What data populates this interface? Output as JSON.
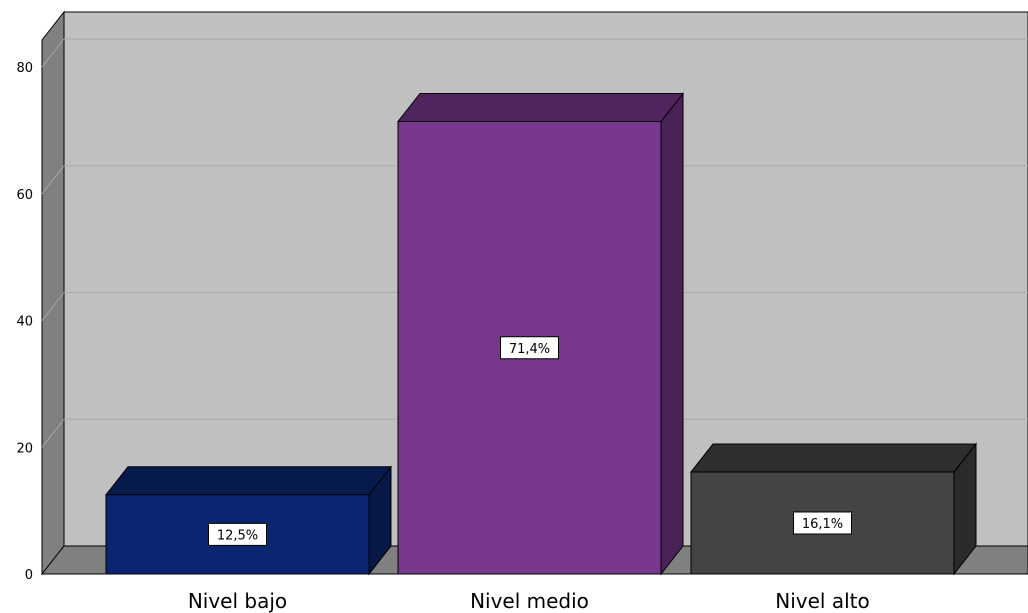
{
  "chart_data": {
    "type": "bar",
    "style": "3d",
    "categories": [
      "Nivel bajo",
      "Nivel medio",
      "Nivel alto"
    ],
    "values": [
      12.5,
      71.4,
      16.1
    ],
    "data_labels": [
      "12,5%",
      "71,4%",
      "16,1%"
    ],
    "colors": [
      "#0b2670",
      "#76378c",
      "#444444"
    ],
    "yticks": [
      "0",
      "20",
      "40",
      "60",
      "80"
    ],
    "ylim": [
      0,
      80
    ],
    "grid": true,
    "legend": "none"
  }
}
